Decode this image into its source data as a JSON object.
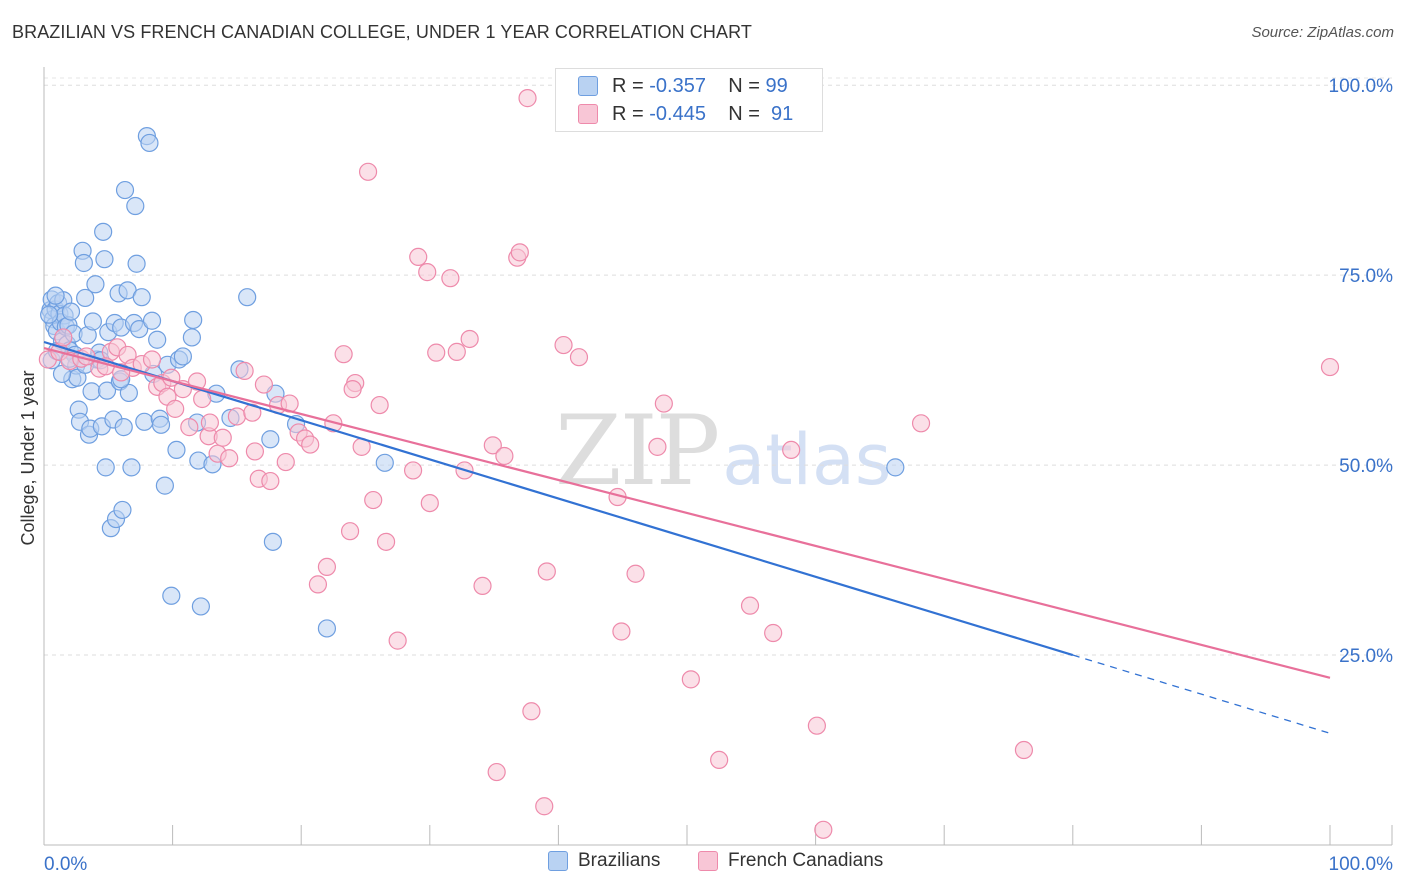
{
  "title": "BRAZILIAN VS FRENCH CANADIAN COLLEGE, UNDER 1 YEAR CORRELATION CHART",
  "source": "Source: ZipAtlas.com",
  "watermark": {
    "zip": "ZIP",
    "atlas": "atlas"
  },
  "stats": [
    {
      "r_label": "R = ",
      "r_value": "-0.357",
      "n_label": "N = ",
      "n_value": "99",
      "color": "#6f9fe0"
    },
    {
      "r_label": "R = ",
      "r_value": "-0.445",
      "n_label": "N = ",
      "n_value": " 91",
      "color": "#ee8aab"
    }
  ],
  "legend": [
    {
      "label": "Brazilians",
      "color": "#6f9fe0",
      "fill": "#b9d2f2"
    },
    {
      "label": "French Canadians",
      "color": "#ee8aab",
      "fill": "#f8c6d6"
    }
  ],
  "chart_data": {
    "type": "scatter",
    "title": "BRAZILIAN VS FRENCH CANADIAN COLLEGE, UNDER 1 YEAR CORRELATION CHART",
    "xlabel": "",
    "ylabel": "College, Under 1 year",
    "xlim": [
      0,
      100
    ],
    "ylim": [
      0,
      102
    ],
    "x_tick_labels": [
      {
        "value": 0,
        "label": "0.0%"
      },
      {
        "value": 100,
        "label": "100.0%"
      }
    ],
    "y_tick_labels": [
      {
        "value": 25,
        "label": "25.0%"
      },
      {
        "value": 50,
        "label": "50.0%"
      },
      {
        "value": 75,
        "label": "75.0%"
      },
      {
        "value": 100,
        "label": "100.0%"
      }
    ],
    "grid": true,
    "series": [
      {
        "name": "Brazilians",
        "color": "#6f9fe0",
        "fill": "#b9d2f2",
        "trend": {
          "x0": 0,
          "y0": 66.2,
          "x1": 80,
          "y1": 25.0,
          "dash_to_x": 100,
          "dash_to_y": 14.7
        },
        "points": [
          [
            0.5,
            70.4
          ],
          [
            0.6,
            71.8
          ],
          [
            0.7,
            69.2
          ],
          [
            0.8,
            68.3
          ],
          [
            0.9,
            70.5
          ],
          [
            1.0,
            67.6
          ],
          [
            1.1,
            71.3
          ],
          [
            1.2,
            69.9
          ],
          [
            1.3,
            68.8
          ],
          [
            1.4,
            66.3
          ],
          [
            1.5,
            71.7
          ],
          [
            1.6,
            69.7
          ],
          [
            1.7,
            68.2
          ],
          [
            1.8,
            65.9
          ],
          [
            1.9,
            68.4
          ],
          [
            2.0,
            65.1
          ],
          [
            2.1,
            70.2
          ],
          [
            2.2,
            61.3
          ],
          [
            2.3,
            67.3
          ],
          [
            2.4,
            64.5
          ],
          [
            2.5,
            63.1
          ],
          [
            2.6,
            61.5
          ],
          [
            2.7,
            57.3
          ],
          [
            2.8,
            55.7
          ],
          [
            3.0,
            78.2
          ],
          [
            3.1,
            76.6
          ],
          [
            3.2,
            72.0
          ],
          [
            3.4,
            67.1
          ],
          [
            3.5,
            54.0
          ],
          [
            3.6,
            54.8
          ],
          [
            3.7,
            59.7
          ],
          [
            3.8,
            68.9
          ],
          [
            4.0,
            73.8
          ],
          [
            4.1,
            63.9
          ],
          [
            4.3,
            64.8
          ],
          [
            4.5,
            55.1
          ],
          [
            4.6,
            80.7
          ],
          [
            4.7,
            77.1
          ],
          [
            4.8,
            49.7
          ],
          [
            4.9,
            59.8
          ],
          [
            5.0,
            67.5
          ],
          [
            5.2,
            41.7
          ],
          [
            5.4,
            56.0
          ],
          [
            5.5,
            68.7
          ],
          [
            5.6,
            42.9
          ],
          [
            5.8,
            72.6
          ],
          [
            5.9,
            61.0
          ],
          [
            6.0,
            68.1
          ],
          [
            6.1,
            44.1
          ],
          [
            6.2,
            55.0
          ],
          [
            6.3,
            86.2
          ],
          [
            6.5,
            73.0
          ],
          [
            6.6,
            59.5
          ],
          [
            6.8,
            49.7
          ],
          [
            7.0,
            68.7
          ],
          [
            7.1,
            84.1
          ],
          [
            7.2,
            76.5
          ],
          [
            7.4,
            67.9
          ],
          [
            7.6,
            72.1
          ],
          [
            7.8,
            55.7
          ],
          [
            8.0,
            93.3
          ],
          [
            8.2,
            92.4
          ],
          [
            8.4,
            69.0
          ],
          [
            8.8,
            66.5
          ],
          [
            9.0,
            56.1
          ],
          [
            9.1,
            55.3
          ],
          [
            9.4,
            47.3
          ],
          [
            9.6,
            63.2
          ],
          [
            9.9,
            32.8
          ],
          [
            10.3,
            52.0
          ],
          [
            10.5,
            63.9
          ],
          [
            10.8,
            64.3
          ],
          [
            11.5,
            66.8
          ],
          [
            11.6,
            69.1
          ],
          [
            11.9,
            55.6
          ],
          [
            12.0,
            50.6
          ],
          [
            12.2,
            31.4
          ],
          [
            13.1,
            50.1
          ],
          [
            13.4,
            59.4
          ],
          [
            14.5,
            56.2
          ],
          [
            15.2,
            62.6
          ],
          [
            15.8,
            72.1
          ],
          [
            17.6,
            53.4
          ],
          [
            17.8,
            39.9
          ],
          [
            18.0,
            59.4
          ],
          [
            19.6,
            55.4
          ],
          [
            22.0,
            28.5
          ],
          [
            26.5,
            50.3
          ],
          [
            66.2,
            49.7
          ],
          [
            0.4,
            69.8
          ],
          [
            0.6,
            63.8
          ],
          [
            1.0,
            65.0
          ],
          [
            1.4,
            62.0
          ],
          [
            2.0,
            64.0
          ],
          [
            3.2,
            63.2
          ],
          [
            0.9,
            72.3
          ],
          [
            4.4,
            63.8
          ],
          [
            6.0,
            61.3
          ],
          [
            8.5,
            62.0
          ]
        ]
      },
      {
        "name": "French Canadians",
        "color": "#ee8aab",
        "fill": "#f8c6d6",
        "trend": {
          "x0": 0,
          "y0": 65.4,
          "x1": 100,
          "y1": 22.0
        },
        "points": [
          [
            0.3,
            63.9
          ],
          [
            1.2,
            64.9
          ],
          [
            2.0,
            63.7
          ],
          [
            2.9,
            64.0
          ],
          [
            3.3,
            64.3
          ],
          [
            4.3,
            62.7
          ],
          [
            5.2,
            64.9
          ],
          [
            5.7,
            65.5
          ],
          [
            6.5,
            64.5
          ],
          [
            6.9,
            62.8
          ],
          [
            7.6,
            63.3
          ],
          [
            8.4,
            63.9
          ],
          [
            8.8,
            60.3
          ],
          [
            9.2,
            60.8
          ],
          [
            9.6,
            59.0
          ],
          [
            10.2,
            57.4
          ],
          [
            10.8,
            60.0
          ],
          [
            11.3,
            55.0
          ],
          [
            11.9,
            61.0
          ],
          [
            12.3,
            58.7
          ],
          [
            12.8,
            53.8
          ],
          [
            13.5,
            51.5
          ],
          [
            13.9,
            53.6
          ],
          [
            14.4,
            50.9
          ],
          [
            15.0,
            56.4
          ],
          [
            15.6,
            62.4
          ],
          [
            16.2,
            56.9
          ],
          [
            16.7,
            48.2
          ],
          [
            17.1,
            60.6
          ],
          [
            17.6,
            47.9
          ],
          [
            18.2,
            57.9
          ],
          [
            18.8,
            50.4
          ],
          [
            19.1,
            58.1
          ],
          [
            19.8,
            54.3
          ],
          [
            20.3,
            53.5
          ],
          [
            20.7,
            52.7
          ],
          [
            21.3,
            34.3
          ],
          [
            22.0,
            36.6
          ],
          [
            22.5,
            55.5
          ],
          [
            23.3,
            64.6
          ],
          [
            23.8,
            41.3
          ],
          [
            24.2,
            60.8
          ],
          [
            24.7,
            52.4
          ],
          [
            25.2,
            88.6
          ],
          [
            25.6,
            45.4
          ],
          [
            26.1,
            57.9
          ],
          [
            26.6,
            39.9
          ],
          [
            27.5,
            26.9
          ],
          [
            28.7,
            49.3
          ],
          [
            29.1,
            77.4
          ],
          [
            29.8,
            75.4
          ],
          [
            30.5,
            64.8
          ],
          [
            31.6,
            74.6
          ],
          [
            32.1,
            64.9
          ],
          [
            32.7,
            49.3
          ],
          [
            33.1,
            66.6
          ],
          [
            34.1,
            34.1
          ],
          [
            34.9,
            52.6
          ],
          [
            35.2,
            9.6
          ],
          [
            35.8,
            51.2
          ],
          [
            36.8,
            77.3
          ],
          [
            37.0,
            78.0
          ],
          [
            37.6,
            98.3
          ],
          [
            37.9,
            17.6
          ],
          [
            38.9,
            5.1
          ],
          [
            39.1,
            36.0
          ],
          [
            40.4,
            65.8
          ],
          [
            41.6,
            64.2
          ],
          [
            44.6,
            45.8
          ],
          [
            44.9,
            28.1
          ],
          [
            46.0,
            35.7
          ],
          [
            47.7,
            52.4
          ],
          [
            48.2,
            58.1
          ],
          [
            50.3,
            21.8
          ],
          [
            52.5,
            11.2
          ],
          [
            54.9,
            31.5
          ],
          [
            56.7,
            27.9
          ],
          [
            58.1,
            52.0
          ],
          [
            60.1,
            15.7
          ],
          [
            60.6,
            2.0
          ],
          [
            68.2,
            55.5
          ],
          [
            76.2,
            12.5
          ],
          [
            100.0,
            62.9
          ],
          [
            1.5,
            66.8
          ],
          [
            4.8,
            63.0
          ],
          [
            6.0,
            62.2
          ],
          [
            9.9,
            61.5
          ],
          [
            12.9,
            55.6
          ],
          [
            16.4,
            51.8
          ],
          [
            24.0,
            60.0
          ],
          [
            30.0,
            45.0
          ]
        ]
      }
    ]
  }
}
